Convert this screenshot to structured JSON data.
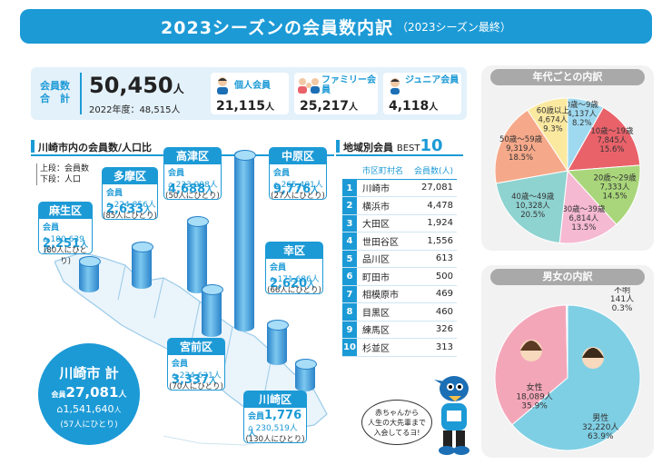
{
  "title": {
    "main": "2023シーズンの会員数内訳",
    "sub": "（2023シーズン最終）"
  },
  "summary": {
    "label_line1": "会員数",
    "label_line2": "合　計",
    "total": "50,450",
    "total_unit": "人",
    "prev": "2022年度：48,515人",
    "cards": [
      {
        "label": "個人会員",
        "value": "21,115",
        "unit": "人",
        "icon": "person-icon"
      },
      {
        "label": "ファミリー会員",
        "value": "25,217",
        "unit": "人",
        "icon": "family-icon"
      },
      {
        "label": "ジュニア会員",
        "value": "4,118",
        "unit": "人",
        "icon": "child-icon"
      }
    ]
  },
  "map": {
    "section_title": "川崎市内の会員数/人口比",
    "legend_line1": "上段：会員数",
    "legend_line2": "下段：人口",
    "member_mark": "会員",
    "wards": [
      {
        "name": "麻生区",
        "count": "2,251",
        "pop": "180,639人",
        "ratio": "(80人にひとり)"
      },
      {
        "name": "多摩区",
        "count": "2,633",
        "pop": "224,856人",
        "ratio": "(85人にひとり)"
      },
      {
        "name": "高津区",
        "count": "4,688",
        "pop": "233,908人",
        "ratio": "(50人にひとり)"
      },
      {
        "name": "中原区",
        "count": "9,776",
        "pop": "265,401人",
        "ratio": "(27人にひとり)"
      },
      {
        "name": "幸区",
        "count": "2,620",
        "pop": "171,686人",
        "ratio": "(66人にひとり)"
      },
      {
        "name": "宮前区",
        "count": "3,337",
        "pop": "234,631人",
        "ratio": "(70人にひとり)"
      },
      {
        "name": "川崎区",
        "count": "1,776",
        "pop": "230,519人",
        "ratio": "(130人にひとり)"
      }
    ],
    "unit": "人",
    "city_total": {
      "name": "川崎市 計",
      "count": "27,081",
      "unit": "人",
      "pop": "1,541,640",
      "pop_unit": "人",
      "ratio": "(57人にひとり)"
    }
  },
  "ranking": {
    "title": "地域別会員",
    "best": "BEST",
    "best_num": "10",
    "col_city": "市区町村名",
    "col_count": "会員数(人)",
    "rows": [
      {
        "rank": "1",
        "city": "川崎市",
        "count": "27,081"
      },
      {
        "rank": "2",
        "city": "横浜市",
        "count": "4,478"
      },
      {
        "rank": "3",
        "city": "大田区",
        "count": "1,924"
      },
      {
        "rank": "4",
        "city": "世田谷区",
        "count": "1,556"
      },
      {
        "rank": "5",
        "city": "品川区",
        "count": "613"
      },
      {
        "rank": "6",
        "city": "町田市",
        "count": "500"
      },
      {
        "rank": "7",
        "city": "相模原市",
        "count": "469"
      },
      {
        "rank": "8",
        "city": "目黒区",
        "count": "460"
      },
      {
        "rank": "9",
        "city": "練馬区",
        "count": "326"
      },
      {
        "rank": "10",
        "city": "杉並区",
        "count": "313"
      }
    ]
  },
  "mascot_bubble": {
    "line1": "赤ちゃんから",
    "line2": "人生の大先輩まで",
    "line3": "入会してるヨ!"
  },
  "age_chart": {
    "title": "年代ごとの内訳",
    "slices": [
      {
        "label": "0歳〜9歳",
        "count": "4,137人",
        "pct": "8.2%",
        "value": 8.2,
        "color": "#9fd9ef"
      },
      {
        "label": "10歳〜19歳",
        "count": "7,845人",
        "pct": "15.6%",
        "value": 15.6,
        "color": "#e9626a"
      },
      {
        "label": "20歳〜29歳",
        "count": "7,333人",
        "pct": "14.5%",
        "value": 14.5,
        "color": "#a9d67a"
      },
      {
        "label": "30歳〜39歳",
        "count": "6,814人",
        "pct": "13.5%",
        "value": 13.5,
        "color": "#f5b9d2"
      },
      {
        "label": "40歳〜49歳",
        "count": "10,328人",
        "pct": "20.5%",
        "value": 20.5,
        "color": "#8fd3d1"
      },
      {
        "label": "50歳〜59歳",
        "count": "9,319人",
        "pct": "18.5%",
        "value": 18.5,
        "color": "#f6a98a"
      },
      {
        "label": "60歳以上",
        "count": "4,674人",
        "pct": "9.3%",
        "value": 9.3,
        "color": "#fbe9a0"
      }
    ]
  },
  "gender_chart": {
    "title": "男女の内訳",
    "slices": [
      {
        "label": "男性",
        "count": "32,220人",
        "pct": "63.9%",
        "value": 63.9,
        "color": "#7fcfe4"
      },
      {
        "label": "女性",
        "count": "18,089人",
        "pct": "35.9%",
        "value": 35.9,
        "color": "#f4a6b9"
      },
      {
        "label": "不明",
        "count": "141人",
        "pct": "0.3%",
        "value": 0.3,
        "color": "#ffffff"
      }
    ]
  }
}
